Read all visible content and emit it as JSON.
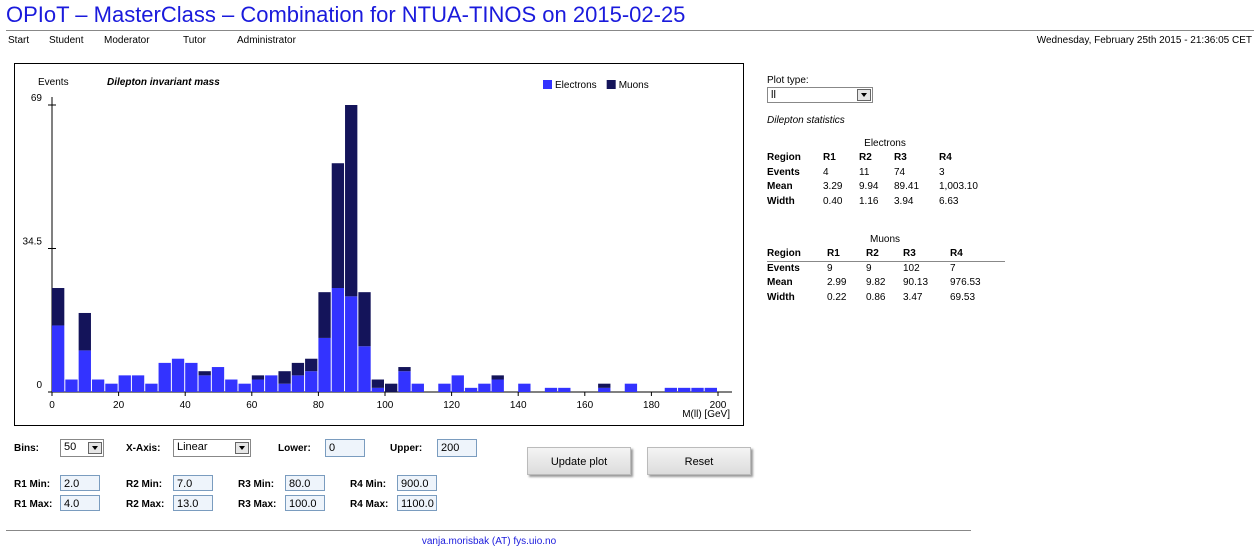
{
  "header": {
    "title": "OPIoT – MasterClass – Combination for NTUA-TINOS on 2015-02-25",
    "datetime": "Wednesday, February 25th 2015 - 21:36:05 CET"
  },
  "nav": [
    "Start",
    "Student",
    "Moderator",
    "Tutor",
    "Administrator"
  ],
  "chart_data": {
    "type": "histogram",
    "title": "Dilepton invariant mass",
    "y_label": "Events",
    "x_label": "M(ll) [GeV]",
    "bins": [
      0,
      4,
      8,
      12,
      16,
      20,
      24,
      28,
      32,
      36,
      40,
      44,
      48,
      52,
      56,
      60,
      64,
      68,
      72,
      76,
      80,
      84,
      88,
      92,
      96,
      100,
      104,
      108,
      112,
      116,
      120,
      124,
      128,
      132,
      136,
      140,
      144,
      148,
      152,
      156,
      160,
      164,
      168,
      172,
      176,
      180,
      184,
      188,
      192,
      196,
      200
    ],
    "series": [
      {
        "name": "Electrons",
        "color": "#3333ff",
        "values": [
          16,
          3,
          10,
          3,
          2,
          4,
          4,
          2,
          7,
          8,
          7,
          4,
          6,
          3,
          2,
          3,
          4,
          2,
          4,
          5,
          13,
          25,
          23,
          11,
          1,
          0,
          5,
          2,
          0,
          2,
          4,
          1,
          2,
          3,
          0,
          2,
          0,
          1,
          1,
          0,
          0,
          1,
          0,
          2,
          0,
          0,
          1,
          1,
          1,
          1
        ]
      },
      {
        "name": "Muons",
        "color": "#14145a",
        "values": [
          9,
          0,
          9,
          0,
          0,
          0,
          0,
          0,
          0,
          0,
          0,
          1,
          0,
          0,
          0,
          1,
          0,
          3,
          3,
          3,
          11,
          30,
          46,
          13,
          2,
          2,
          1,
          0,
          0,
          0,
          0,
          0,
          0,
          1,
          0,
          0,
          0,
          0,
          0,
          0,
          0,
          1,
          0,
          0,
          0,
          0,
          0,
          0,
          0,
          0
        ]
      }
    ],
    "stacked": true,
    "xlim": [
      0,
      200
    ],
    "ylim": [
      0,
      69
    ],
    "xticks": [
      0,
      20,
      40,
      60,
      80,
      100,
      120,
      140,
      160,
      180,
      200
    ],
    "yticks": [
      0,
      34.5,
      69
    ],
    "legend": "top-right"
  },
  "sidebar": {
    "plot_type_label": "Plot type:",
    "plot_type_value": "ll",
    "stats_title": "Dilepton statistics",
    "electrons": {
      "caption": "Electrons",
      "rows": [
        [
          "Region",
          "R1",
          "R2",
          "R3",
          "R4"
        ],
        [
          "Events",
          "4",
          "11",
          "74",
          "3"
        ],
        [
          "Mean",
          "3.29",
          "9.94",
          "89.41",
          "1,003.10"
        ],
        [
          "Width",
          "0.40",
          "1.16",
          "3.94",
          "6.63"
        ]
      ]
    },
    "muons": {
      "caption": "Muons",
      "rows": [
        [
          "Region",
          "R1",
          "R2",
          "R3",
          "R4"
        ],
        [
          "Events",
          "9",
          "9",
          "102",
          "7"
        ],
        [
          "Mean",
          "2.99",
          "9.82",
          "90.13",
          "976.53"
        ],
        [
          "Width",
          "0.22",
          "0.86",
          "3.47",
          "69.53"
        ]
      ]
    }
  },
  "form": {
    "bins_label": "Bins:",
    "bins": "50",
    "xaxis_label": "X-Axis:",
    "xaxis": "Linear",
    "lower_label": "Lower:",
    "lower": "0",
    "upper_label": "Upper:",
    "upper": "200",
    "regions": [
      {
        "min_label": "R1 Min:",
        "min": "2.0",
        "max_label": "R1 Max:",
        "max": "4.0"
      },
      {
        "min_label": "R2 Min:",
        "min": "7.0",
        "max_label": "R2 Max:",
        "max": "13.0"
      },
      {
        "min_label": "R3 Min:",
        "min": "80.0",
        "max_label": "R3 Max:",
        "max": "100.0"
      },
      {
        "min_label": "R4 Min:",
        "min": "900.0",
        "max_label": "R4 Max:",
        "max": "1100.0"
      }
    ],
    "update_button": "Update plot",
    "reset_button": "Reset"
  },
  "footer": "vanja.morisbak (AT) fys.uio.no"
}
